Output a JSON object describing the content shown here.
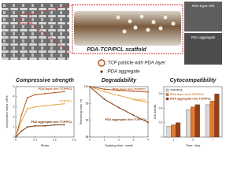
{
  "diagram": {
    "scaffold_label": "PDA-TCP/PCL scaffold",
    "sem_top": "PDA layer-rich",
    "sem_bottom": "PDA aggregate",
    "legend": [
      ":TCP particle with PDA layer",
      ":PDA aggregate"
    ]
  },
  "chart_data": [
    {
      "type": "line",
      "title": "Compressive strength",
      "xlabel": "Strain",
      "ylabel": "Compressive stress / MPa",
      "x": [
        0,
        0.03,
        0.06,
        0.1,
        0.15,
        0.2,
        0.25
      ],
      "series": [
        {
          "name": "PDA layer-rich TCP/PCL",
          "color": "#b5561b",
          "values": [
            0,
            2.2,
            3.9,
            4.2,
            4.3,
            4.4,
            4.5
          ]
        },
        {
          "name": "TCP/PCL",
          "color": "#e8a33d",
          "values": [
            0,
            1.6,
            2.8,
            3.0,
            3.1,
            3.2,
            3.3
          ]
        },
        {
          "name": "PDA aggregate-rich TCP/PCL",
          "color": "#7a3b10",
          "values": [
            0,
            0.6,
            1.0,
            1.1,
            1.1,
            1.2,
            1.2
          ]
        }
      ],
      "xlim": [
        0,
        0.3
      ],
      "xticks": [
        0,
        0.1,
        0.2,
        0.3
      ],
      "ylim": [
        0,
        5
      ],
      "yticks": [
        0,
        1,
        2,
        3,
        4,
        5
      ]
    },
    {
      "type": "line",
      "title": "Degradability",
      "xlabel": "Soaking time / week",
      "ylabel": "Remaining mass / %",
      "x": [
        0,
        1,
        2,
        3,
        4
      ],
      "series": [
        {
          "name": "PDA layer-rich TCP/PCL",
          "color": "#b5561b",
          "values": [
            100,
            99.4,
            99.1,
            98.9,
            98.7
          ]
        },
        {
          "name": "TCP/PCL",
          "color": "#e8a33d",
          "values": [
            100,
            98.8,
            97.9,
            97.0,
            96.2
          ]
        },
        {
          "name": "PDA aggregate-rich TCP/PCL",
          "color": "#7a3b10",
          "values": [
            100,
            97.0,
            95.0,
            93.2,
            91.5
          ]
        }
      ],
      "xlim": [
        0,
        4
      ],
      "xticks": [
        0,
        1,
        2,
        3,
        4
      ],
      "ylim": [
        88,
        100
      ],
      "yticks": [
        88,
        92,
        96,
        100
      ]
    },
    {
      "type": "bar",
      "title": "Cytocompatibility",
      "xlabel": "Time / day",
      "ylabel": "Cell viability",
      "categories": [
        "1",
        "3",
        "7"
      ],
      "series": [
        {
          "name": "TCP/PCL",
          "color": "#d9d9d9",
          "values": [
            0.15,
            0.38,
            0.45
          ]
        },
        {
          "name": "PDA layer-rich TCP/PCL",
          "color": "#e07b30",
          "values": [
            0.17,
            0.42,
            0.5
          ]
        },
        {
          "name": "PDA aggregate-rich TCP/PCL",
          "color": "#9c3d12",
          "values": [
            0.2,
            0.45,
            0.6
          ]
        }
      ],
      "ylim": [
        0,
        0.7
      ],
      "yticks": [
        0,
        0.2,
        0.4,
        0.6
      ]
    }
  ]
}
